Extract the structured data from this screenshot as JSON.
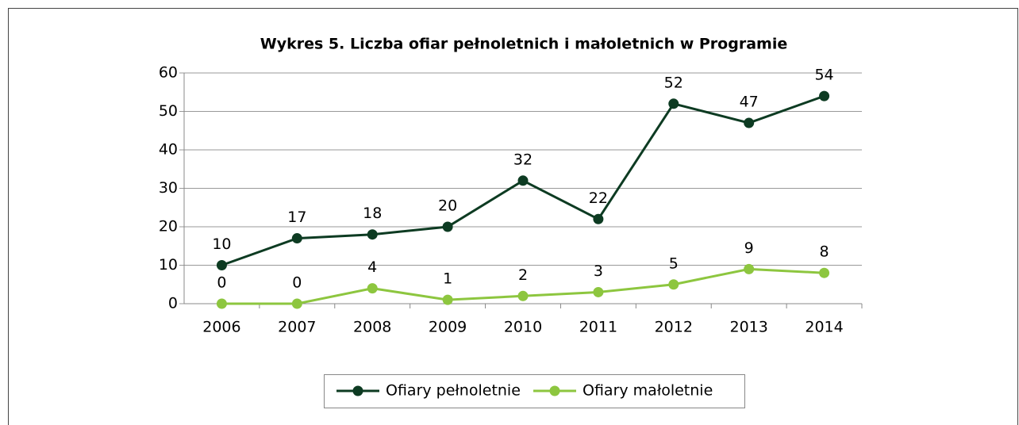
{
  "chart_data": {
    "type": "line",
    "title": "Wykres 5. Liczba ofiar pełnoletnich i małoletnich w Programie",
    "categories": [
      "2006",
      "2007",
      "2008",
      "2009",
      "2010",
      "2011",
      "2012",
      "2013",
      "2014"
    ],
    "series": [
      {
        "name": "Ofiary pełnoletnie",
        "color": "#0d3b22",
        "values": [
          10,
          17,
          18,
          20,
          32,
          22,
          52,
          47,
          54
        ]
      },
      {
        "name": "Ofiary małoletnie",
        "color": "#8dc63f",
        "values": [
          0,
          0,
          4,
          1,
          2,
          3,
          5,
          9,
          8
        ]
      }
    ],
    "ylim": [
      0,
      60
    ],
    "yticks": [
      0,
      10,
      20,
      30,
      40,
      50,
      60
    ],
    "grid": true,
    "legend": "bottom"
  }
}
